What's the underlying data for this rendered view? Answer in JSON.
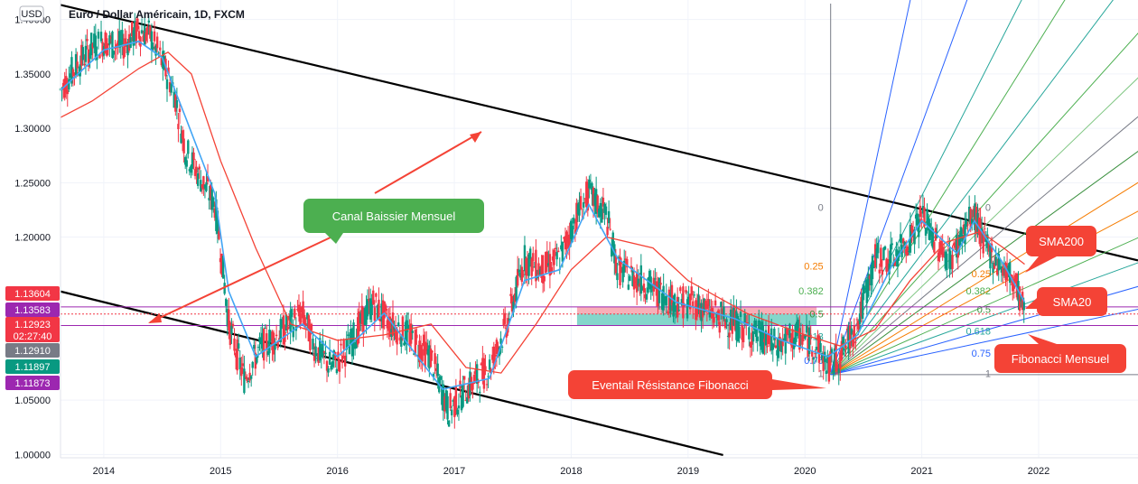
{
  "header": {
    "currency_badge": "USD",
    "title": "Euro / Dollar Américain, 1D, FXCM"
  },
  "chart_data": {
    "type": "candlestick",
    "y_axis_ticks": [
      "1.40000",
      "1.35000",
      "1.30000",
      "1.25000",
      "1.20000",
      "1.05000",
      "1.00000"
    ],
    "y_axis_tick_values": [
      1.4,
      1.35,
      1.3,
      1.25,
      1.2,
      1.05,
      1.0
    ],
    "x_axis_ticks": [
      "2014",
      "2015",
      "2016",
      "2017",
      "2018",
      "2019",
      "2020",
      "2021",
      "2022"
    ],
    "ylim": [
      0.997,
      1.418
    ],
    "xlim": [
      2013.63,
      2022.85
    ],
    "price_path": [
      [
        2013.63,
        1.335
      ],
      [
        2013.75,
        1.355
      ],
      [
        2013.9,
        1.375
      ],
      [
        2014.0,
        1.38
      ],
      [
        2014.15,
        1.375
      ],
      [
        2014.3,
        1.39
      ],
      [
        2014.4,
        1.385
      ],
      [
        2014.5,
        1.36
      ],
      [
        2014.6,
        1.335
      ],
      [
        2014.7,
        1.28
      ],
      [
        2014.8,
        1.26
      ],
      [
        2014.95,
        1.23
      ],
      [
        2015.0,
        1.19
      ],
      [
        2015.07,
        1.12
      ],
      [
        2015.2,
        1.07
      ],
      [
        2015.35,
        1.1
      ],
      [
        2015.5,
        1.11
      ],
      [
        2015.6,
        1.12
      ],
      [
        2015.7,
        1.13
      ],
      [
        2015.8,
        1.1
      ],
      [
        2015.95,
        1.08
      ],
      [
        2016.1,
        1.1
      ],
      [
        2016.3,
        1.14
      ],
      [
        2016.45,
        1.12
      ],
      [
        2016.6,
        1.11
      ],
      [
        2016.8,
        1.09
      ],
      [
        2016.95,
        1.04
      ],
      [
        2017.1,
        1.06
      ],
      [
        2017.3,
        1.08
      ],
      [
        2017.45,
        1.12
      ],
      [
        2017.6,
        1.18
      ],
      [
        2017.75,
        1.17
      ],
      [
        2017.9,
        1.18
      ],
      [
        2018.05,
        1.22
      ],
      [
        2018.15,
        1.24
      ],
      [
        2018.3,
        1.22
      ],
      [
        2018.4,
        1.17
      ],
      [
        2018.6,
        1.16
      ],
      [
        2018.75,
        1.15
      ],
      [
        2018.9,
        1.14
      ],
      [
        2019.05,
        1.14
      ],
      [
        2019.2,
        1.13
      ],
      [
        2019.4,
        1.12
      ],
      [
        2019.6,
        1.11
      ],
      [
        2019.75,
        1.1
      ],
      [
        2019.95,
        1.11
      ],
      [
        2020.1,
        1.1
      ],
      [
        2020.2,
        1.08
      ],
      [
        2020.3,
        1.09
      ],
      [
        2020.45,
        1.12
      ],
      [
        2020.6,
        1.18
      ],
      [
        2020.75,
        1.18
      ],
      [
        2020.9,
        1.2
      ],
      [
        2021.0,
        1.22
      ],
      [
        2021.15,
        1.19
      ],
      [
        2021.25,
        1.18
      ],
      [
        2021.38,
        1.21
      ],
      [
        2021.45,
        1.22
      ],
      [
        2021.55,
        1.19
      ],
      [
        2021.7,
        1.17
      ],
      [
        2021.8,
        1.16
      ],
      [
        2021.88,
        1.13
      ]
    ],
    "sma20_path": [
      [
        2013.63,
        1.335
      ],
      [
        2014.0,
        1.372
      ],
      [
        2014.3,
        1.38
      ],
      [
        2014.5,
        1.365
      ],
      [
        2014.7,
        1.31
      ],
      [
        2014.95,
        1.24
      ],
      [
        2015.07,
        1.15
      ],
      [
        2015.3,
        1.09
      ],
      [
        2015.7,
        1.12
      ],
      [
        2016.0,
        1.09
      ],
      [
        2016.4,
        1.13
      ],
      [
        2016.9,
        1.06
      ],
      [
        2017.3,
        1.07
      ],
      [
        2017.6,
        1.16
      ],
      [
        2017.9,
        1.17
      ],
      [
        2018.15,
        1.23
      ],
      [
        2018.4,
        1.18
      ],
      [
        2018.9,
        1.14
      ],
      [
        2019.4,
        1.125
      ],
      [
        2019.8,
        1.105
      ],
      [
        2020.2,
        1.09
      ],
      [
        2020.45,
        1.11
      ],
      [
        2020.75,
        1.175
      ],
      [
        2021.0,
        1.215
      ],
      [
        2021.3,
        1.185
      ],
      [
        2021.45,
        1.215
      ],
      [
        2021.7,
        1.175
      ],
      [
        2021.88,
        1.14
      ]
    ],
    "sma200_path": [
      [
        2013.63,
        1.31
      ],
      [
        2013.9,
        1.325
      ],
      [
        2014.3,
        1.355
      ],
      [
        2014.55,
        1.37
      ],
      [
        2014.75,
        1.35
      ],
      [
        2015.0,
        1.27
      ],
      [
        2015.3,
        1.19
      ],
      [
        2015.6,
        1.12
      ],
      [
        2016.0,
        1.105
      ],
      [
        2016.4,
        1.11
      ],
      [
        2016.8,
        1.12
      ],
      [
        2017.1,
        1.08
      ],
      [
        2017.4,
        1.075
      ],
      [
        2017.7,
        1.12
      ],
      [
        2018.0,
        1.17
      ],
      [
        2018.3,
        1.2
      ],
      [
        2018.7,
        1.19
      ],
      [
        2019.0,
        1.16
      ],
      [
        2019.5,
        1.13
      ],
      [
        2020.0,
        1.11
      ],
      [
        2020.3,
        1.1
      ],
      [
        2020.6,
        1.115
      ],
      [
        2020.9,
        1.16
      ],
      [
        2021.2,
        1.195
      ],
      [
        2021.5,
        1.205
      ],
      [
        2021.7,
        1.19
      ],
      [
        2021.88,
        1.175
      ]
    ],
    "sma_labels": [
      "SMA200",
      "SMA20"
    ],
    "price_badges": [
      {
        "label": "1.13604",
        "color": "#f23645"
      },
      {
        "label": "1.13583",
        "color": "#9c27b0"
      },
      {
        "label": "1.12923",
        "label2": "02:27:40",
        "color": "#f23645"
      },
      {
        "label": "1.12910",
        "color": "#787b86"
      },
      {
        "label": "1.11897",
        "color": "#089981"
      },
      {
        "label": "1.11873",
        "color": "#9c27b0"
      }
    ],
    "horizontal_levels": [
      1.1358,
      1.1292,
      1.1187
    ],
    "fib_zone": {
      "x": [
        2018.05,
        2020.1
      ],
      "red": [
        1.1295,
        1.136
      ],
      "green": [
        1.1187,
        1.1295
      ]
    },
    "fib_fan": {
      "origin": [
        2020.22,
        1.0735
      ],
      "levels": [
        {
          "label": "0",
          "color": "#787b86"
        },
        {
          "label": "0.25",
          "color": "#f57c00"
        },
        {
          "label": "0.382",
          "color": "#4caf50"
        },
        {
          "label": "0.5",
          "color": "#388e3c"
        },
        {
          "label": "0.618",
          "color": "#26a69a"
        },
        {
          "label": "0.75",
          "color": "#2962ff"
        },
        {
          "label": "1",
          "color": "#787b86"
        }
      ]
    },
    "channel_lines": [
      {
        "from": [
          2013.63,
          1.4135
        ],
        "to": [
          2022.85,
          1.1785
        ]
      },
      {
        "from": [
          2013.63,
          1.15
        ],
        "to": [
          2019.3,
          0.9995
        ]
      }
    ],
    "annotations": [
      {
        "text": "Canal Baissier Mensuel",
        "color": "#4caf50"
      },
      {
        "text": "Eventail Résistance Fibonacci",
        "color": "#f44336"
      },
      {
        "text": "SMA200",
        "color": "#f44336"
      },
      {
        "text": "SMA20",
        "color": "#f44336"
      },
      {
        "text": "Fibonacci Mensuel",
        "color": "#f44336"
      }
    ]
  }
}
